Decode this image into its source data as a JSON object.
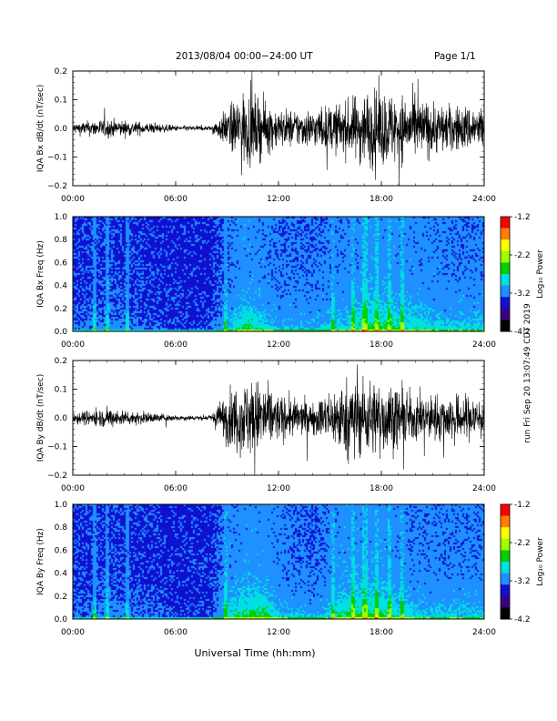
{
  "header": {
    "date_range": "2013/08/04  00:00−24:00 UT",
    "page": "Page 1/1"
  },
  "side_stamp": "run Fri Sep 20 13:07:49 CDT 2019",
  "xlabel": "Universal Time (hh:mm)",
  "x_ticks": [
    "00:00",
    "06:00",
    "12:00",
    "18:00",
    "24:00"
  ],
  "colorscale": {
    "label": "Log₁₀ Power",
    "ticks": [
      "-1.2",
      "-2.2",
      "-3.2",
      "-4.2"
    ],
    "range": [
      -4.2,
      -1.2
    ],
    "colors": [
      "#000000",
      "#3a0080",
      "#1010d0",
      "#1e90ff",
      "#00e0e0",
      "#00d000",
      "#a0ff00",
      "#ffff00",
      "#ff8000",
      "#ff0000"
    ]
  },
  "chart_data": [
    {
      "type": "line",
      "ylabel": "IQA Bx dB/dt (nT/sec)",
      "ylim": [
        -0.2,
        0.2
      ],
      "y_ticks": [
        "0.2",
        "0.1",
        "0.0",
        "−0.1",
        "−0.2"
      ],
      "xlim_hours": [
        0,
        24
      ],
      "series": [
        {
          "values_note_skip": true,
          "hours": [
            0,
            2,
            6,
            8,
            9,
            10,
            11,
            12,
            14,
            16,
            17,
            18,
            20,
            22,
            24
          ],
          "amplitude": [
            0.03,
            0.05,
            0.015,
            0.012,
            0.1,
            0.2,
            0.15,
            0.1,
            0.1,
            0.14,
            0.2,
            0.2,
            0.16,
            0.12,
            0.12
          ]
        }
      ]
    },
    {
      "type": "heatmap",
      "ylabel": "IQA Bx Freq (Hz)",
      "ylim": [
        0.0,
        1.0
      ],
      "y_ticks": [
        "1.0",
        "0.8",
        "0.6",
        "0.4",
        "0.2",
        "0.0"
      ],
      "xlim_hours": [
        0,
        24
      ],
      "zlim": [
        -4.2,
        -1.2
      ]
    },
    {
      "type": "line",
      "ylabel": "IQA By dB/dt (nT/sec)",
      "ylim": [
        -0.2,
        0.2
      ],
      "y_ticks": [
        "0.2",
        "0.1",
        "0.0",
        "−0.1",
        "−0.2"
      ],
      "xlim_hours": [
        0,
        24
      ],
      "series": [
        {
          "hours": [
            0,
            2,
            6,
            8,
            9,
            10,
            11,
            12,
            14,
            16,
            17,
            18,
            20,
            22,
            24
          ],
          "amplitude": [
            0.03,
            0.05,
            0.015,
            0.012,
            0.14,
            0.2,
            0.2,
            0.12,
            0.08,
            0.2,
            0.2,
            0.2,
            0.12,
            0.12,
            0.12
          ]
        }
      ]
    },
    {
      "type": "heatmap",
      "ylabel": "IQA By Freq (Hz)",
      "ylim": [
        0.0,
        1.0
      ],
      "y_ticks": [
        "1.0",
        "0.8",
        "0.6",
        "0.4",
        "0.2",
        "0.0"
      ],
      "xlim_hours": [
        0,
        24
      ],
      "zlim": [
        -4.2,
        -1.2
      ]
    }
  ]
}
